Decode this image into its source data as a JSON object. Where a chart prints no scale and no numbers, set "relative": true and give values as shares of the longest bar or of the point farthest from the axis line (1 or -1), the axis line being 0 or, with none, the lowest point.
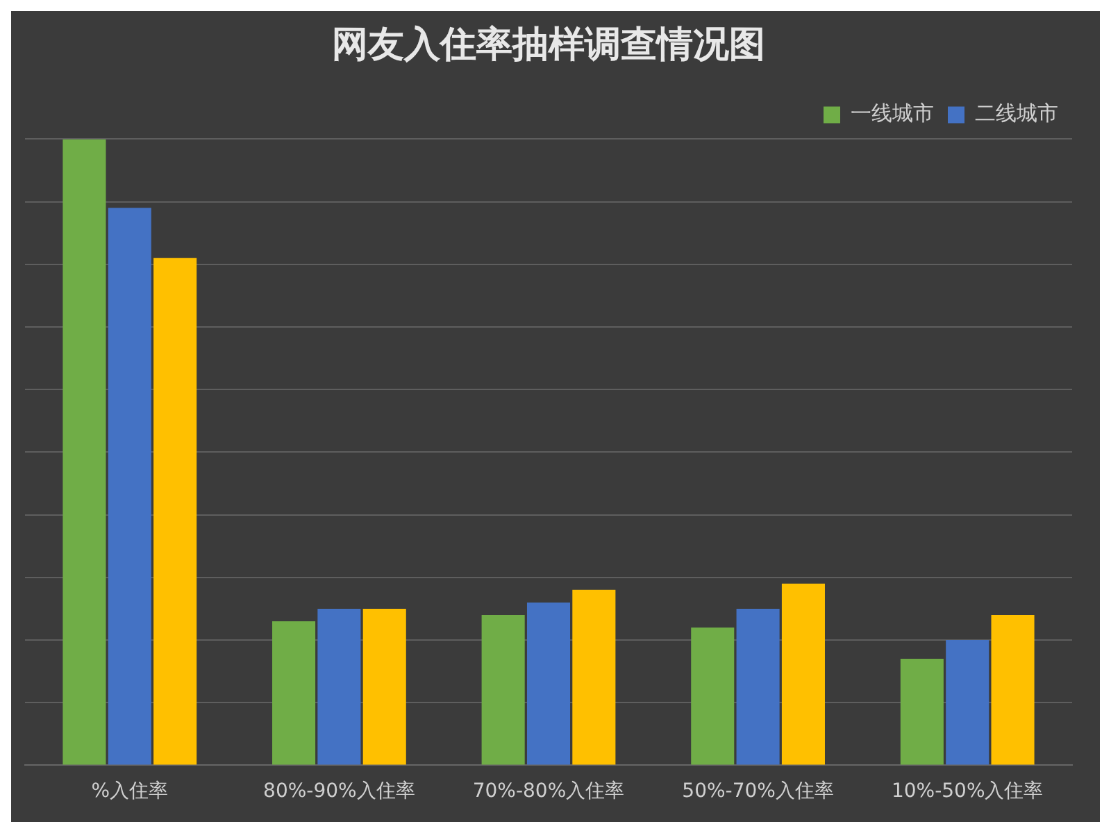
{
  "chart_data": {
    "type": "bar",
    "title": "网友入住率抽样调查情况图",
    "relative": true,
    "grid": "y",
    "legend": "top right",
    "categories": [
      "%入住率",
      "80%-90%入住率",
      "70%-80%入住率",
      "50%-70%入住率",
      "10%-50%入住率"
    ],
    "series": [
      {
        "name": "一线城市",
        "color": "#70ad47",
        "values": [
          1,
          0.23,
          0.24,
          0.22,
          0.17
        ]
      },
      {
        "name": "二线城市",
        "color": "#4472c4",
        "values": [
          0.89,
          0.25,
          0.26,
          0.25,
          0.2
        ]
      },
      {
        "color": "#ffc000",
        "values": [
          0.81,
          0.25,
          0.28,
          0.29,
          0.24
        ]
      }
    ]
  }
}
